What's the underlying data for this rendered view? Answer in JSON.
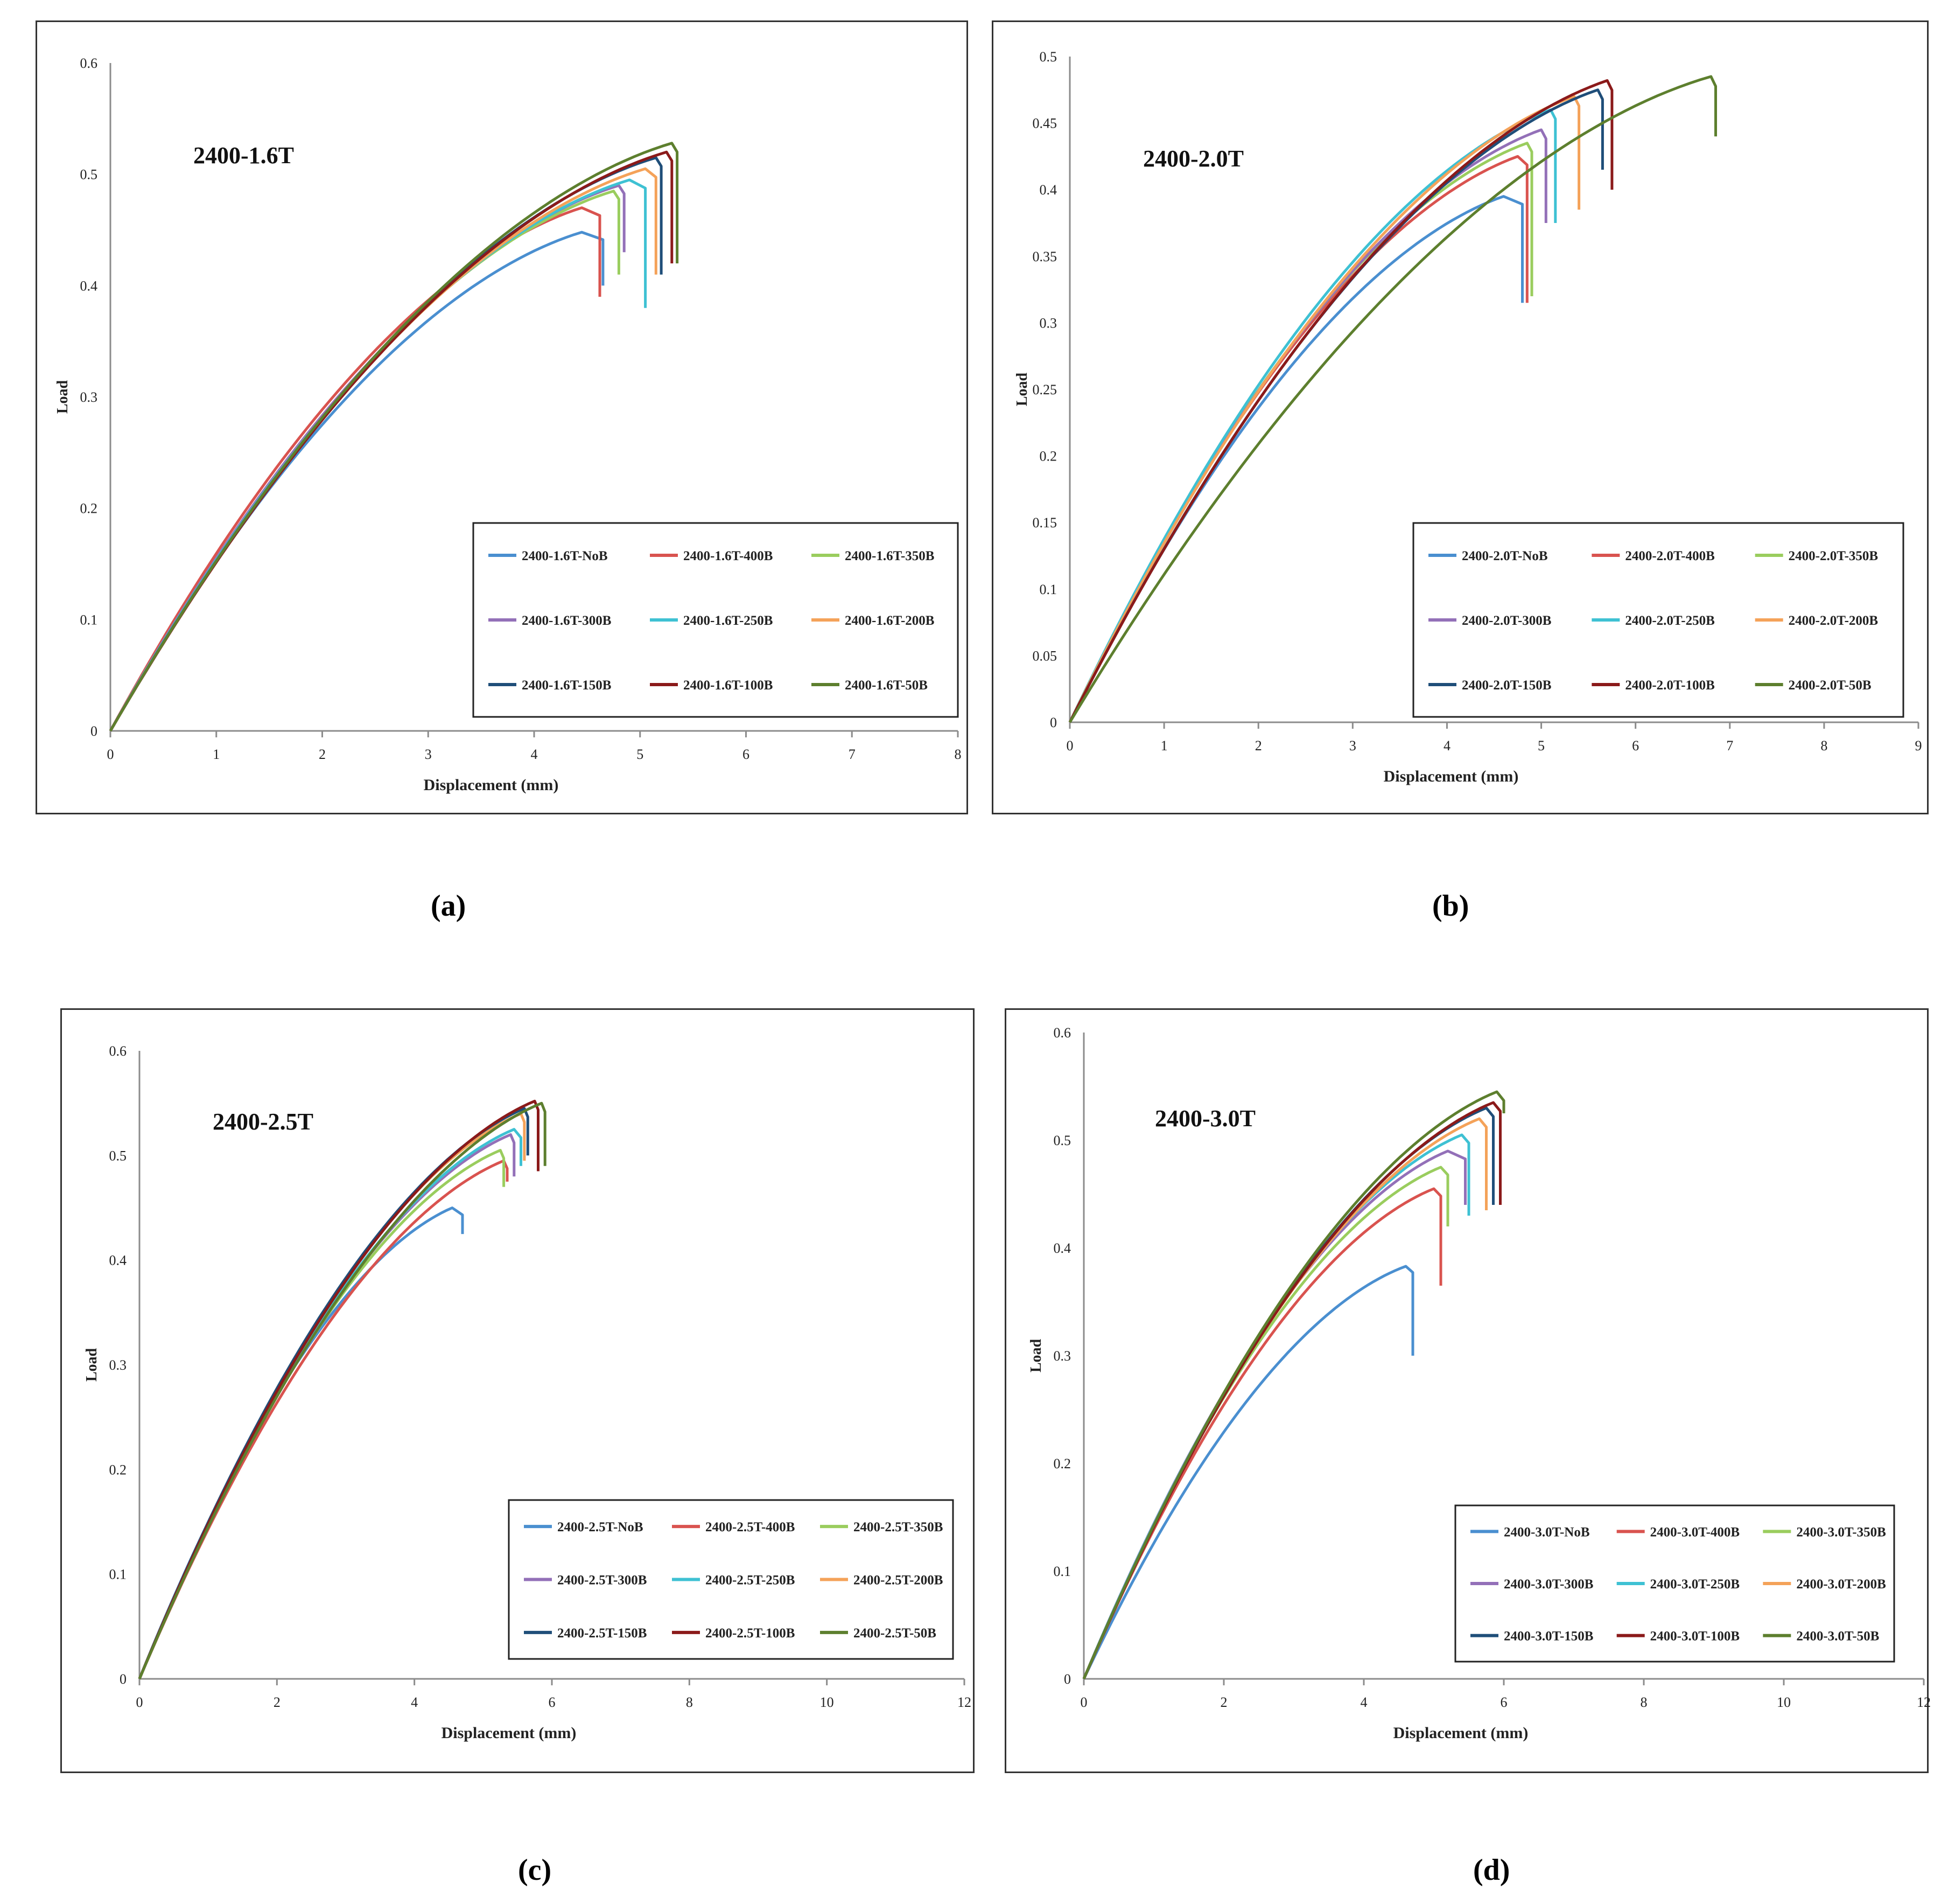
{
  "captions": {
    "a": "(a)",
    "b": "(b)",
    "c": "(c)",
    "d": "(d)"
  },
  "legend_colors": {
    "NoB": "#4a8fd0",
    "400B": "#d9534f",
    "350B": "#9acd5e",
    "300B": "#9370b8",
    "250B": "#3ec1d3",
    "200B": "#f4a259",
    "150B": "#1f4e79",
    "100B": "#8b1a1a",
    "50B": "#5d7f2e"
  },
  "chart_data": [
    {
      "id": "a",
      "type": "line",
      "title": "2400-1.6T",
      "xlabel": "Displacement (mm)",
      "ylabel": "Load",
      "xlim": [
        0,
        8
      ],
      "ylim": [
        0,
        0.6
      ],
      "xticks": [
        "0",
        "1",
        "2",
        "3",
        "4",
        "5",
        "6",
        "7",
        "8"
      ],
      "yticks": [
        "0",
        "0.1",
        "0.2",
        "0.3",
        "0.4",
        "0.5",
        "0.6"
      ],
      "series": [
        {
          "name": "2400-1.6T-NoB",
          "key": "NoB",
          "peak_x": 4.45,
          "peak_y": 0.448,
          "end_x": 4.65,
          "drop_y": 0.4,
          "knee": 0.4
        },
        {
          "name": "2400-1.6T-400B",
          "key": "400B",
          "peak_x": 4.45,
          "peak_y": 0.47,
          "end_x": 4.62,
          "drop_y": 0.39,
          "knee": 0.42
        },
        {
          "name": "2400-1.6T-350B",
          "key": "350B",
          "peak_x": 4.75,
          "peak_y": 0.485,
          "end_x": 4.8,
          "drop_y": 0.41,
          "knee": 0.44
        },
        {
          "name": "2400-1.6T-300B",
          "key": "300B",
          "peak_x": 4.8,
          "peak_y": 0.49,
          "end_x": 4.85,
          "drop_y": 0.43,
          "knee": 0.44
        },
        {
          "name": "2400-1.6T-250B",
          "key": "250B",
          "peak_x": 4.9,
          "peak_y": 0.495,
          "end_x": 5.05,
          "drop_y": 0.38,
          "knee": 0.44
        },
        {
          "name": "2400-1.6T-200B",
          "key": "200B",
          "peak_x": 5.05,
          "peak_y": 0.505,
          "end_x": 5.15,
          "drop_y": 0.41,
          "knee": 0.46
        },
        {
          "name": "2400-1.6T-150B",
          "key": "150B",
          "peak_x": 5.15,
          "peak_y": 0.515,
          "end_x": 5.2,
          "drop_y": 0.41,
          "knee": 0.47
        },
        {
          "name": "2400-1.6T-100B",
          "key": "100B",
          "peak_x": 5.25,
          "peak_y": 0.52,
          "end_x": 5.3,
          "drop_y": 0.42,
          "knee": 0.48
        },
        {
          "name": "2400-1.6T-50B",
          "key": "50B",
          "peak_x": 5.3,
          "peak_y": 0.528,
          "end_x": 5.35,
          "drop_y": 0.42,
          "knee": 0.48
        }
      ]
    },
    {
      "id": "b",
      "type": "line",
      "title": "2400-2.0T",
      "xlabel": "Displacement (mm)",
      "ylabel": "Load",
      "xlim": [
        0,
        9
      ],
      "ylim": [
        0,
        0.5
      ],
      "xticks": [
        "0",
        "1",
        "2",
        "3",
        "4",
        "5",
        "6",
        "7",
        "8",
        "9"
      ],
      "yticks": [
        "0",
        "0.05",
        "0.1",
        "0.15",
        "0.2",
        "0.25",
        "0.3",
        "0.35",
        "0.4",
        "0.45",
        "0.5"
      ],
      "series": [
        {
          "name": "2400-2.0T-NoB",
          "key": "NoB",
          "peak_x": 4.6,
          "peak_y": 0.395,
          "end_x": 4.8,
          "drop_y": 0.315,
          "knee": 0.34
        },
        {
          "name": "2400-2.0T-400B",
          "key": "400B",
          "peak_x": 4.75,
          "peak_y": 0.425,
          "end_x": 4.85,
          "drop_y": 0.315,
          "knee": 0.38
        },
        {
          "name": "2400-2.0T-350B",
          "key": "350B",
          "peak_x": 4.85,
          "peak_y": 0.435,
          "end_x": 4.9,
          "drop_y": 0.32,
          "knee": 0.39
        },
        {
          "name": "2400-2.0T-300B",
          "key": "300B",
          "peak_x": 5.0,
          "peak_y": 0.445,
          "end_x": 5.05,
          "drop_y": 0.375,
          "knee": 0.4
        },
        {
          "name": "2400-2.0T-250B",
          "key": "250B",
          "peak_x": 5.1,
          "peak_y": 0.46,
          "end_x": 5.15,
          "drop_y": 0.375,
          "knee": 0.41
        },
        {
          "name": "2400-2.0T-200B",
          "key": "200B",
          "peak_x": 5.35,
          "peak_y": 0.47,
          "end_x": 5.4,
          "drop_y": 0.385,
          "knee": 0.42
        },
        {
          "name": "2400-2.0T-150B",
          "key": "150B",
          "peak_x": 5.6,
          "peak_y": 0.475,
          "end_x": 5.65,
          "drop_y": 0.415,
          "knee": 0.43
        },
        {
          "name": "2400-2.0T-100B",
          "key": "100B",
          "peak_x": 5.7,
          "peak_y": 0.482,
          "end_x": 5.75,
          "drop_y": 0.4,
          "knee": 0.43
        },
        {
          "name": "2400-2.0T-50B",
          "key": "50B",
          "peak_x": 6.8,
          "peak_y": 0.485,
          "end_x": 6.85,
          "drop_y": 0.44,
          "knee": 0.44
        }
      ]
    },
    {
      "id": "c",
      "type": "line",
      "title": "2400-2.5T",
      "xlabel": "Displacement (mm)",
      "ylabel": "Load",
      "xlim": [
        0,
        12
      ],
      "ylim": [
        0,
        0.6
      ],
      "xticks": [
        "0",
        "2",
        "4",
        "6",
        "8",
        "10",
        "12"
      ],
      "yticks": [
        "0",
        "0.1",
        "0.2",
        "0.3",
        "0.4",
        "0.5",
        "0.6"
      ],
      "series": [
        {
          "name": "2400-2.5T-NoB",
          "key": "NoB",
          "peak_x": 4.55,
          "peak_y": 0.45,
          "end_x": 4.7,
          "drop_y": 0.425,
          "knee": 0.45
        },
        {
          "name": "2400-2.5T-400B",
          "key": "400B",
          "peak_x": 5.3,
          "peak_y": 0.495,
          "end_x": 5.35,
          "drop_y": 0.475,
          "knee": 0.47
        },
        {
          "name": "2400-2.5T-350B",
          "key": "350B",
          "peak_x": 5.25,
          "peak_y": 0.505,
          "end_x": 5.3,
          "drop_y": 0.47,
          "knee": 0.48
        },
        {
          "name": "2400-2.5T-300B",
          "key": "300B",
          "peak_x": 5.4,
          "peak_y": 0.52,
          "end_x": 5.45,
          "drop_y": 0.48,
          "knee": 0.49
        },
        {
          "name": "2400-2.5T-250B",
          "key": "250B",
          "peak_x": 5.45,
          "peak_y": 0.525,
          "end_x": 5.55,
          "drop_y": 0.49,
          "knee": 0.5
        },
        {
          "name": "2400-2.5T-200B",
          "key": "200B",
          "peak_x": 5.55,
          "peak_y": 0.54,
          "end_x": 5.6,
          "drop_y": 0.495,
          "knee": 0.5
        },
        {
          "name": "2400-2.5T-150B",
          "key": "150B",
          "peak_x": 5.6,
          "peak_y": 0.545,
          "end_x": 5.65,
          "drop_y": 0.5,
          "knee": 0.51
        },
        {
          "name": "2400-2.5T-100B",
          "key": "100B",
          "peak_x": 5.75,
          "peak_y": 0.552,
          "end_x": 5.8,
          "drop_y": 0.485,
          "knee": 0.51
        },
        {
          "name": "2400-2.5T-50B",
          "key": "50B",
          "peak_x": 5.85,
          "peak_y": 0.55,
          "end_x": 5.9,
          "drop_y": 0.49,
          "knee": 0.51
        }
      ]
    },
    {
      "id": "d",
      "type": "line",
      "title": "2400-3.0T",
      "xlabel": "Displacement (mm)",
      "ylabel": "Load",
      "xlim": [
        0,
        12
      ],
      "ylim": [
        0,
        0.6
      ],
      "xticks": [
        "0",
        "2",
        "4",
        "6",
        "8",
        "10",
        "12"
      ],
      "yticks": [
        "0",
        "0.1",
        "0.2",
        "0.3",
        "0.4",
        "0.5",
        "0.6"
      ],
      "series": [
        {
          "name": "2400-3.0T-NoB",
          "key": "NoB",
          "peak_x": 4.6,
          "peak_y": 0.383,
          "end_x": 4.7,
          "drop_y": 0.3,
          "knee": 0.36
        },
        {
          "name": "2400-3.0T-400B",
          "key": "400B",
          "peak_x": 5.0,
          "peak_y": 0.455,
          "end_x": 5.1,
          "drop_y": 0.365,
          "knee": 0.44
        },
        {
          "name": "2400-3.0T-350B",
          "key": "350B",
          "peak_x": 5.1,
          "peak_y": 0.475,
          "end_x": 5.2,
          "drop_y": 0.42,
          "knee": 0.46
        },
        {
          "name": "2400-3.0T-300B",
          "key": "300B",
          "peak_x": 5.2,
          "peak_y": 0.49,
          "end_x": 5.45,
          "drop_y": 0.44,
          "knee": 0.47
        },
        {
          "name": "2400-3.0T-250B",
          "key": "250B",
          "peak_x": 5.4,
          "peak_y": 0.505,
          "end_x": 5.5,
          "drop_y": 0.43,
          "knee": 0.48
        },
        {
          "name": "2400-3.0T-200B",
          "key": "200B",
          "peak_x": 5.65,
          "peak_y": 0.52,
          "end_x": 5.75,
          "drop_y": 0.435,
          "knee": 0.49
        },
        {
          "name": "2400-3.0T-150B",
          "key": "150B",
          "peak_x": 5.75,
          "peak_y": 0.53,
          "end_x": 5.85,
          "drop_y": 0.44,
          "knee": 0.5
        },
        {
          "name": "2400-3.0T-100B",
          "key": "100B",
          "peak_x": 5.85,
          "peak_y": 0.535,
          "end_x": 5.95,
          "drop_y": 0.44,
          "knee": 0.5
        },
        {
          "name": "2400-3.0T-50B",
          "key": "50B",
          "peak_x": 5.9,
          "peak_y": 0.545,
          "end_x": 6.0,
          "drop_y": 0.525,
          "knee": 0.51
        }
      ]
    }
  ]
}
